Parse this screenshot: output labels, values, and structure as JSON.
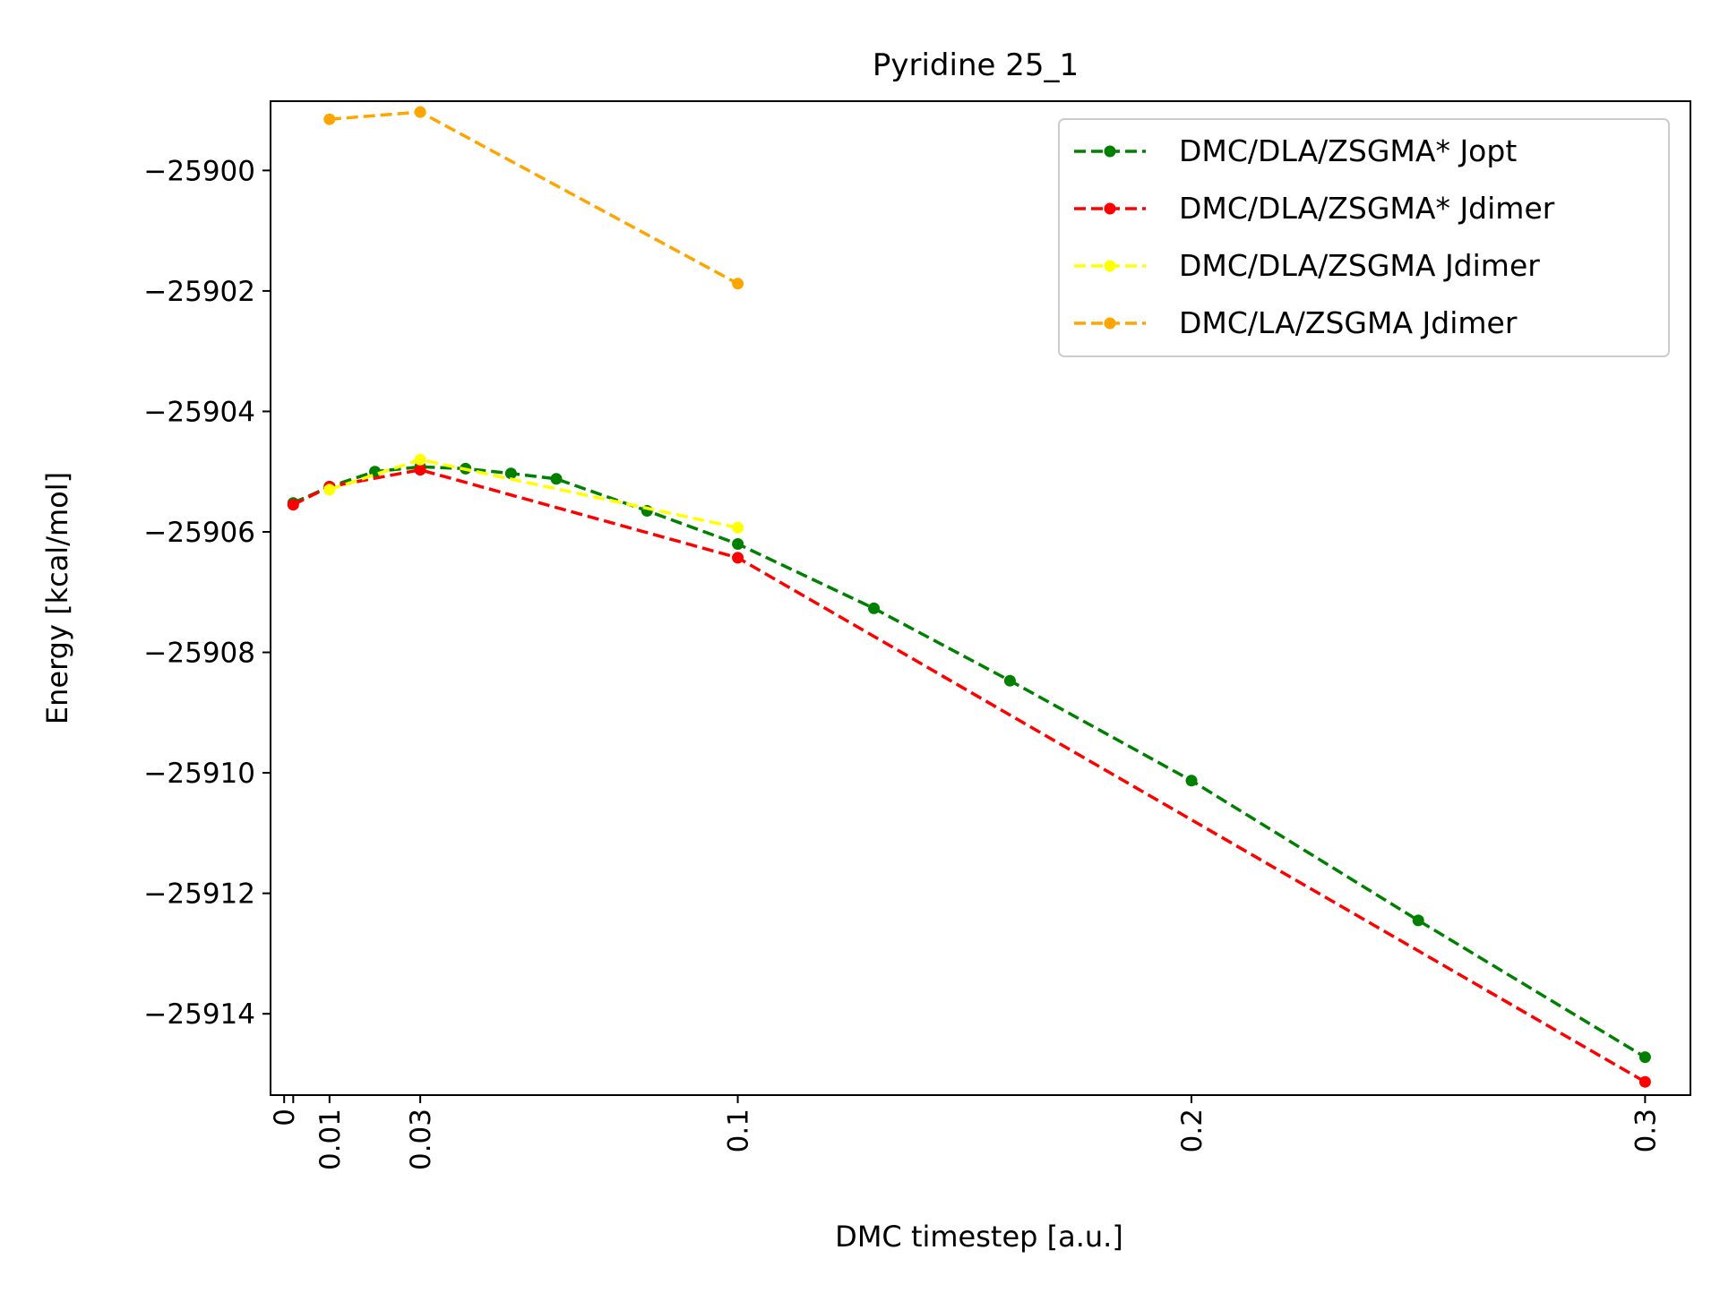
{
  "chart_data": {
    "type": "line",
    "title": "Pyridine 25_1",
    "xlabel": "DMC timestep [a.u.]",
    "ylabel": "Energy [kcal/mol]",
    "xlim": [
      -0.003,
      0.31
    ],
    "ylim": [
      -25915.35,
      -25898.85
    ],
    "xticks": [
      {
        "value": 0,
        "label": "0"
      },
      {
        "value": 0.002,
        "label": ""
      },
      {
        "value": 0.01,
        "label": "0.01"
      },
      {
        "value": 0.03,
        "label": "0.03"
      },
      {
        "value": 0.1,
        "label": "0.1"
      },
      {
        "value": 0.2,
        "label": "0.2"
      },
      {
        "value": 0.3,
        "label": "0.3"
      }
    ],
    "yticks": [
      {
        "value": -25900,
        "label": "−25900"
      },
      {
        "value": -25902,
        "label": "−25902"
      },
      {
        "value": -25904,
        "label": "−25904"
      },
      {
        "value": -25906,
        "label": "−25906"
      },
      {
        "value": -25908,
        "label": "−25908"
      },
      {
        "value": -25910,
        "label": "−25910"
      },
      {
        "value": -25912,
        "label": "−25912"
      },
      {
        "value": -25914,
        "label": "−25914"
      }
    ],
    "grid": false,
    "legend_position": "top-right",
    "series": [
      {
        "name": "DMC/DLA/ZSGMA* Jopt",
        "color": "#008000",
        "x": [
          0.002,
          0.01,
          0.02,
          0.03,
          0.04,
          0.05,
          0.06,
          0.08,
          0.1,
          0.13,
          0.16,
          0.2,
          0.25,
          0.3
        ],
        "y": [
          -25905.52,
          -25905.25,
          -25905.0,
          -25904.92,
          -25904.95,
          -25905.03,
          -25905.12,
          -25905.65,
          -25906.2,
          -25907.27,
          -25908.47,
          -25910.13,
          -25912.45,
          -25914.72
        ]
      },
      {
        "name": "DMC/DLA/ZSGMA* Jdimer",
        "color": "#ff0000",
        "x": [
          0.002,
          0.01,
          0.03,
          0.1,
          0.3
        ],
        "y": [
          -25905.55,
          -25905.25,
          -25904.97,
          -25906.43,
          -25915.13
        ]
      },
      {
        "name": "DMC/DLA/ZSGMA Jdimer",
        "color": "#ffff00",
        "x": [
          0.01,
          0.03,
          0.1
        ],
        "y": [
          -25905.3,
          -25904.8,
          -25905.93
        ]
      },
      {
        "name": "DMC/LA/ZSGMA Jdimer",
        "color": "#ffa500",
        "x": [
          0.01,
          0.03,
          0.1
        ],
        "y": [
          -25899.15,
          -25899.03,
          -25901.88
        ]
      }
    ]
  }
}
